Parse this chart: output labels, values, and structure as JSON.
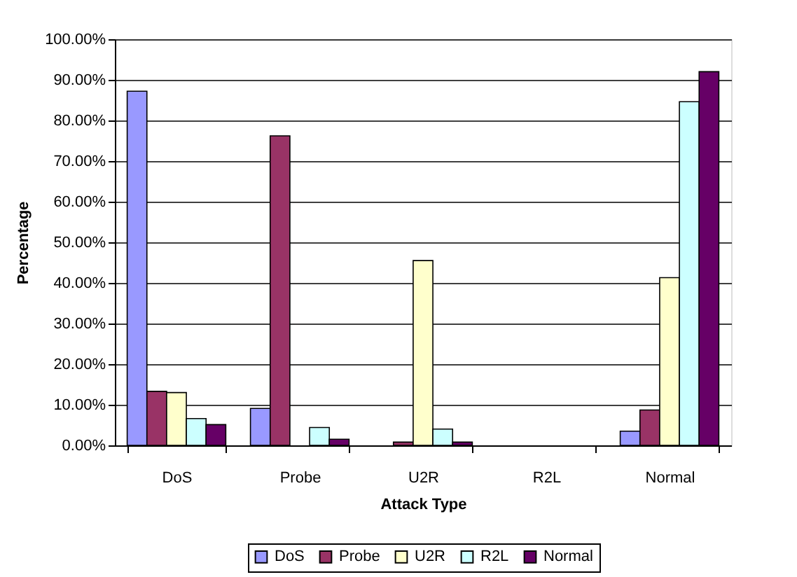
{
  "chart_data": {
    "type": "bar",
    "xlabel": "Attack Type",
    "ylabel": "Percentage",
    "categories": [
      "DoS",
      "Probe",
      "U2R",
      "R2L",
      "Normal"
    ],
    "series": [
      {
        "name": "DoS",
        "color": "#9999ff",
        "values": [
          87.2,
          9.1,
          0,
          0,
          3.5
        ]
      },
      {
        "name": "Probe",
        "color": "#993366",
        "values": [
          13.3,
          76.2,
          0.8,
          0,
          8.7
        ]
      },
      {
        "name": "U2R",
        "color": "#ffffcc",
        "values": [
          13.0,
          0,
          45.5,
          0,
          41.3
        ]
      },
      {
        "name": "R2L",
        "color": "#ccffff",
        "values": [
          6.6,
          4.4,
          4.0,
          0,
          84.6
        ]
      },
      {
        "name": "Normal",
        "color": "#660066",
        "values": [
          5.1,
          1.5,
          0.8,
          0,
          92.0
        ]
      }
    ],
    "ylim": [
      0,
      100
    ],
    "yticks": [
      {
        "value": 0,
        "label": "0.00%"
      },
      {
        "value": 10,
        "label": "10.00%"
      },
      {
        "value": 20,
        "label": "20.00%"
      },
      {
        "value": 30,
        "label": "30.00%"
      },
      {
        "value": 40,
        "label": "40.00%"
      },
      {
        "value": 50,
        "label": "50.00%"
      },
      {
        "value": 60,
        "label": "60.00%"
      },
      {
        "value": 70,
        "label": "70.00%"
      },
      {
        "value": 80,
        "label": "80.00%"
      },
      {
        "value": 90,
        "label": "90.00%"
      },
      {
        "value": 100,
        "label": "100.00%"
      }
    ],
    "grid": "y",
    "legend": "bottom"
  }
}
